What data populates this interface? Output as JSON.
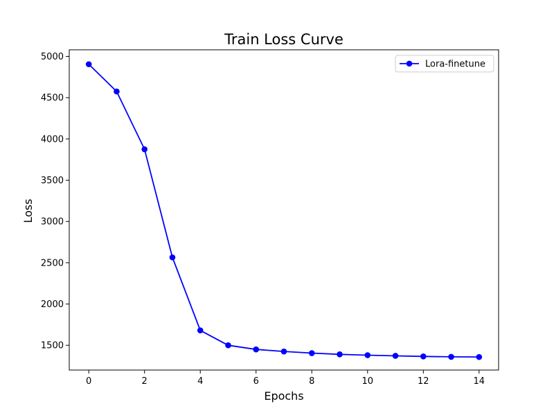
{
  "chart_data": {
    "type": "line",
    "title": "Train Loss Curve",
    "xlabel": "Epochs",
    "ylabel": "Loss",
    "xlim": [
      -0.7,
      14.7
    ],
    "ylim": [
      1200,
      5080
    ],
    "xticks": [
      0,
      2,
      4,
      6,
      8,
      10,
      12,
      14
    ],
    "yticks": [
      1500,
      2000,
      2500,
      3000,
      3500,
      4000,
      4500,
      5000
    ],
    "grid": false,
    "legend_position": "top-right",
    "series": [
      {
        "name": "Lora-finetune",
        "color": "#0000ff",
        "marker": "circle",
        "x": [
          0,
          1,
          2,
          3,
          4,
          5,
          6,
          7,
          8,
          9,
          10,
          11,
          12,
          13,
          14
        ],
        "y": [
          4905,
          4575,
          3875,
          2565,
          1680,
          1500,
          1450,
          1425,
          1405,
          1390,
          1380,
          1372,
          1365,
          1360,
          1358
        ]
      }
    ]
  }
}
